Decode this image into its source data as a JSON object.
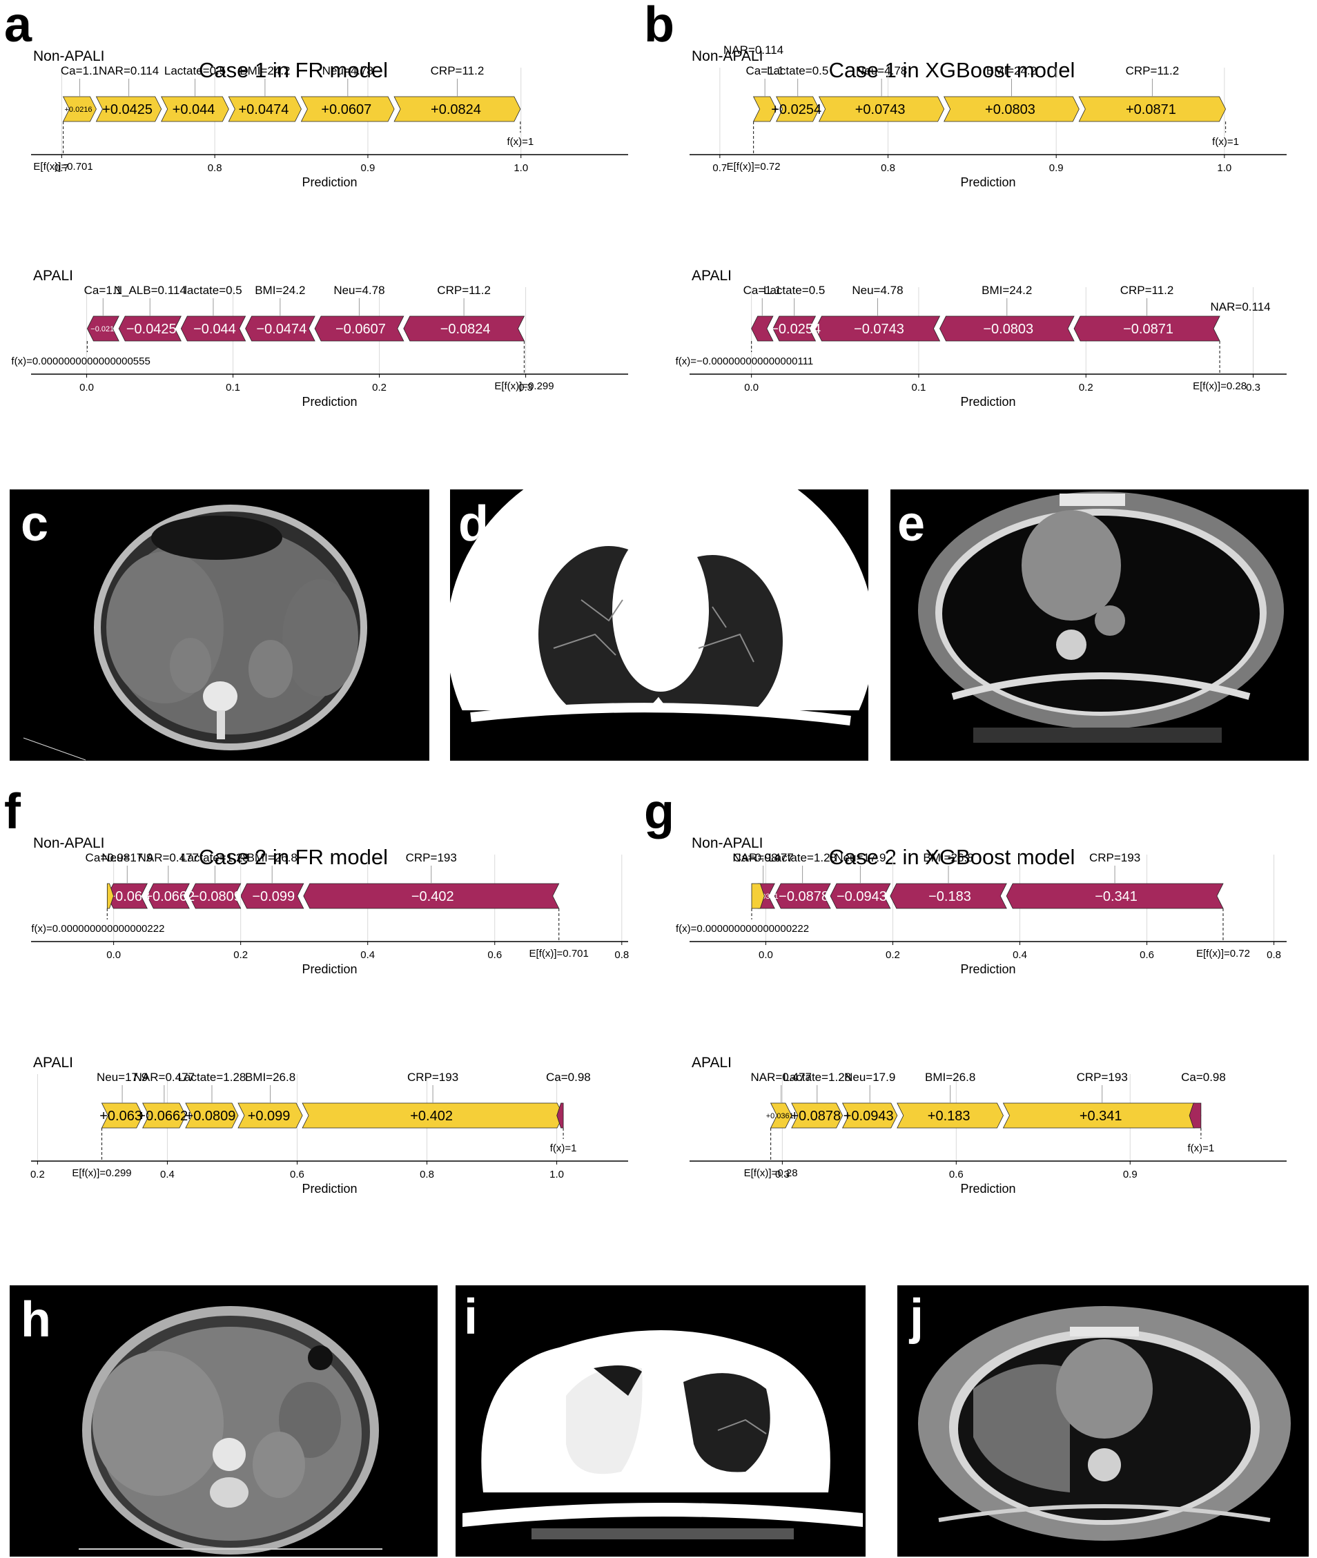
{
  "figure": {
    "colors": {
      "positive": "#F5CF38",
      "negative": "#A5285C",
      "axis": "#000000",
      "grid": "#D9D9D9"
    },
    "panels": [
      {
        "id": "a",
        "label": "a",
        "title": "Case 1 in FR model"
      },
      {
        "id": "b",
        "label": "b",
        "title": "Case 1 in XGBoost model"
      },
      {
        "id": "f",
        "label": "f",
        "title": "Case 2 in FR model"
      },
      {
        "id": "g",
        "label": "g",
        "title": "Case 2 in XGBoost model"
      }
    ],
    "images": [
      {
        "id": "c",
        "label": "c",
        "content": "abdominal-ct"
      },
      {
        "id": "d",
        "label": "d",
        "content": "chest-ct-lung-window"
      },
      {
        "id": "e",
        "label": "e",
        "content": "chest-ct-mediastinal-window"
      },
      {
        "id": "h",
        "label": "h",
        "content": "abdominal-ct"
      },
      {
        "id": "i",
        "label": "i",
        "content": "chest-ct-lung-window"
      },
      {
        "id": "j",
        "label": "j",
        "content": "chest-ct-mediastinal-window"
      }
    ]
  },
  "chart_data": [
    {
      "panel": "a",
      "type": "bar",
      "subtype": "shap-force",
      "class_label": "Non-APALI",
      "direction": "up",
      "base_value": 0.701,
      "base_text": "E[f(x)]=0.701",
      "output_text": "f(x)=1",
      "xlabel": "Prediction",
      "xlim": [
        0.68,
        1.07
      ],
      "ticks": [
        0.7,
        0.8,
        0.9,
        1.0
      ],
      "tick_labels": [
        "0.7",
        "0.8",
        "0.9",
        "1.0"
      ],
      "features": [
        {
          "label": "Ca=1.1",
          "value": 0.0216,
          "text": "+0.0216"
        },
        {
          "label": "NAR=0.114",
          "value": 0.0425,
          "text": "+0.0425"
        },
        {
          "label": "Lactate=0.5",
          "value": 0.044,
          "text": "+0.044"
        },
        {
          "label": "BMI=24.2",
          "value": 0.0474,
          "text": "+0.0474"
        },
        {
          "label": "Neu=4.78",
          "value": 0.0607,
          "text": "+0.0607"
        },
        {
          "label": "CRP=11.2",
          "value": 0.0824,
          "text": "+0.0824"
        }
      ]
    },
    {
      "panel": "a",
      "type": "bar",
      "subtype": "shap-force",
      "class_label": "APALI",
      "direction": "down",
      "base_value": 0.299,
      "base_text": "E[f(x)]=0.299",
      "output_text": "f(x)=0.0000000000000000555",
      "xlabel": "Prediction",
      "xlim": [
        -0.038,
        0.37
      ],
      "ticks": [
        0.0,
        0.1,
        0.2,
        0.3
      ],
      "tick_labels": [
        "0.0",
        "0.1",
        "0.2",
        "0.3"
      ],
      "features": [
        {
          "label": "CRP=11.2",
          "value": -0.0824,
          "text": "−0.0824"
        },
        {
          "label": "Neu=4.78",
          "value": -0.0607,
          "text": "−0.0607"
        },
        {
          "label": "BMI=24.2",
          "value": -0.0474,
          "text": "−0.0474"
        },
        {
          "label": "lactate=0.5",
          "value": -0.044,
          "text": "−0.044"
        },
        {
          "label": "N_ALB=0.114",
          "value": -0.0425,
          "text": "−0.0425"
        },
        {
          "label": "Ca=1.1",
          "value": -0.0216,
          "text": "−0.0216"
        }
      ]
    },
    {
      "panel": "b",
      "type": "bar",
      "subtype": "shap-force",
      "class_label": "Non-APALI",
      "direction": "up",
      "base_value": 0.72,
      "base_text": "E[f(x)]=0.72",
      "output_text": "f(x)=1",
      "xlabel": "Prediction",
      "xlim": [
        0.682,
        1.037
      ],
      "ticks": [
        0.7,
        0.8,
        0.9,
        1.0
      ],
      "tick_labels": [
        "0.7",
        "0.8",
        "0.9",
        "1.0"
      ],
      "features": [
        {
          "label": "Ca=1.1",
          "value": 0.0136,
          "text": ""
        },
        {
          "label": "Lactate=0.5",
          "value": 0.0254,
          "text": "+0.0254"
        },
        {
          "label": "Neu=4.78",
          "value": 0.0743,
          "text": "+0.0743"
        },
        {
          "label": "BMI=24.2",
          "value": 0.0803,
          "text": "+0.0803"
        },
        {
          "label": "CRP=11.2",
          "value": 0.0871,
          "text": "+0.0871"
        }
      ],
      "extra_labels": [
        {
          "label": "NAR=0.114"
        }
      ]
    },
    {
      "panel": "b",
      "type": "bar",
      "subtype": "shap-force",
      "class_label": "APALI",
      "direction": "down",
      "base_value": 0.28,
      "base_text": "E[f(x)]=0.28",
      "output_text": "f(x)=−0.000000000000000111",
      "xlabel": "Prediction",
      "xlim": [
        -0.037,
        0.32
      ],
      "ticks": [
        0.0,
        0.1,
        0.2,
        0.3
      ],
      "tick_labels": [
        "0.0",
        "0.1",
        "0.2",
        "0.3"
      ],
      "features": [
        {
          "label": "CRP=11.2",
          "value": -0.0871,
          "text": "−0.0871"
        },
        {
          "label": "BMI=24.2",
          "value": -0.0803,
          "text": "−0.0803"
        },
        {
          "label": "Neu=4.78",
          "value": -0.0743,
          "text": "−0.0743"
        },
        {
          "label": "Lactate=0.5",
          "value": -0.0254,
          "text": "−0.0254"
        },
        {
          "label": "Ca=1.1",
          "value": -0.0129,
          "text": ""
        }
      ],
      "extra_labels": [
        {
          "label": "NAR=0.114"
        }
      ]
    },
    {
      "panel": "f",
      "type": "bar",
      "subtype": "shap-force",
      "class_label": "Non-APALI",
      "direction": "down",
      "base_value": 0.701,
      "base_text": "E[f(x)]=0.701",
      "output_text": "f(x)=0.000000000000000222",
      "xlabel": "Prediction",
      "xlim": [
        -0.13,
        0.81
      ],
      "ticks": [
        0.0,
        0.2,
        0.4,
        0.6,
        0.8
      ],
      "tick_labels": [
        "0.0",
        "0.2",
        "0.4",
        "0.6",
        "0.8"
      ],
      "features": [
        {
          "label": "CRP=193",
          "value": -0.402,
          "text": "−0.402"
        },
        {
          "label": "BMI=26.8",
          "value": -0.099,
          "text": "−0.099"
        },
        {
          "label": "Lactate=1.28",
          "value": -0.0809,
          "text": "−0.0809"
        },
        {
          "label": "NAR=0.477",
          "value": -0.0662,
          "text": "−0.0662"
        },
        {
          "label": "Neu=17.9",
          "value": -0.063,
          "text": "−0.063"
        }
      ],
      "opposite": [
        {
          "label": "Ca=0.98",
          "value": 0.01,
          "text": ""
        }
      ]
    },
    {
      "panel": "f",
      "type": "bar",
      "subtype": "shap-force",
      "class_label": "APALI",
      "direction": "up",
      "base_value": 0.299,
      "base_text": "E[f(x)]=0.299",
      "output_text": "f(x)=1",
      "xlabel": "Prediction",
      "xlim": [
        0.19,
        1.11
      ],
      "ticks": [
        0.2,
        0.4,
        0.6,
        0.8,
        1.0
      ],
      "tick_labels": [
        "0.2",
        "0.4",
        "0.6",
        "0.8",
        "1.0"
      ],
      "features": [
        {
          "label": "Neu=17.9",
          "value": 0.063,
          "text": "+0.063"
        },
        {
          "label": "NAR=0.477",
          "value": 0.0662,
          "text": "+0.0662"
        },
        {
          "label": "Lactate=1.28",
          "value": 0.0809,
          "text": "+0.0809"
        },
        {
          "label": "BMI=26.8",
          "value": 0.099,
          "text": "+0.099"
        },
        {
          "label": "CRP=193",
          "value": 0.402,
          "text": "+0.402"
        }
      ],
      "opposite": [
        {
          "label": "Ca=0.98",
          "value": -0.01,
          "text": ""
        }
      ]
    },
    {
      "panel": "g",
      "type": "bar",
      "subtype": "shap-force",
      "class_label": "Non-APALI",
      "direction": "down",
      "base_value": 0.72,
      "base_text": "E[f(x)]=0.72",
      "output_text": "f(x)=0.000000000000000222",
      "xlabel": "Prediction",
      "xlim": [
        -0.12,
        0.82
      ],
      "ticks": [
        0.0,
        0.2,
        0.4,
        0.6,
        0.8
      ],
      "tick_labels": [
        "0.0",
        "0.2",
        "0.4",
        "0.6",
        "0.8"
      ],
      "features": [
        {
          "label": "CRP=193",
          "value": -0.341,
          "text": "−0.341"
        },
        {
          "label": "BMI=26.8",
          "value": -0.183,
          "text": "−0.183"
        },
        {
          "label": "Neu=17.9",
          "value": -0.0943,
          "text": "−0.0943"
        },
        {
          "label": "Lactate=1.28",
          "value": -0.0878,
          "text": "−0.0878"
        },
        {
          "label": "NAR=0.477",
          "value": -0.0361,
          "text": "−0.0361"
        }
      ],
      "opposite": [
        {
          "label": "Ca=0.98",
          "value": 0.02,
          "text": ""
        }
      ]
    },
    {
      "panel": "g",
      "type": "bar",
      "subtype": "shap-force",
      "class_label": "APALI",
      "direction": "up",
      "base_value": 0.28,
      "base_text": "E[f(x)]=0.28",
      "output_text": "f(x)=1",
      "xlabel": "Prediction",
      "xlim": [
        0.14,
        1.17
      ],
      "ticks": [
        0.3,
        0.6,
        0.9
      ],
      "tick_labels": [
        "0.3",
        "0.6",
        "0.9"
      ],
      "features": [
        {
          "label": "NAR=0.477",
          "value": 0.0361,
          "text": "+0.0361"
        },
        {
          "label": "Lactate=1.28",
          "value": 0.0878,
          "text": "+0.0878"
        },
        {
          "label": "Neu=17.9",
          "value": 0.0943,
          "text": "+0.0943"
        },
        {
          "label": "BMI=26.8",
          "value": 0.183,
          "text": "+0.183"
        },
        {
          "label": "CRP=193",
          "value": 0.341,
          "text": "+0.341"
        }
      ],
      "opposite": [
        {
          "label": "Ca=0.98",
          "value": -0.02,
          "text": ""
        }
      ]
    }
  ]
}
